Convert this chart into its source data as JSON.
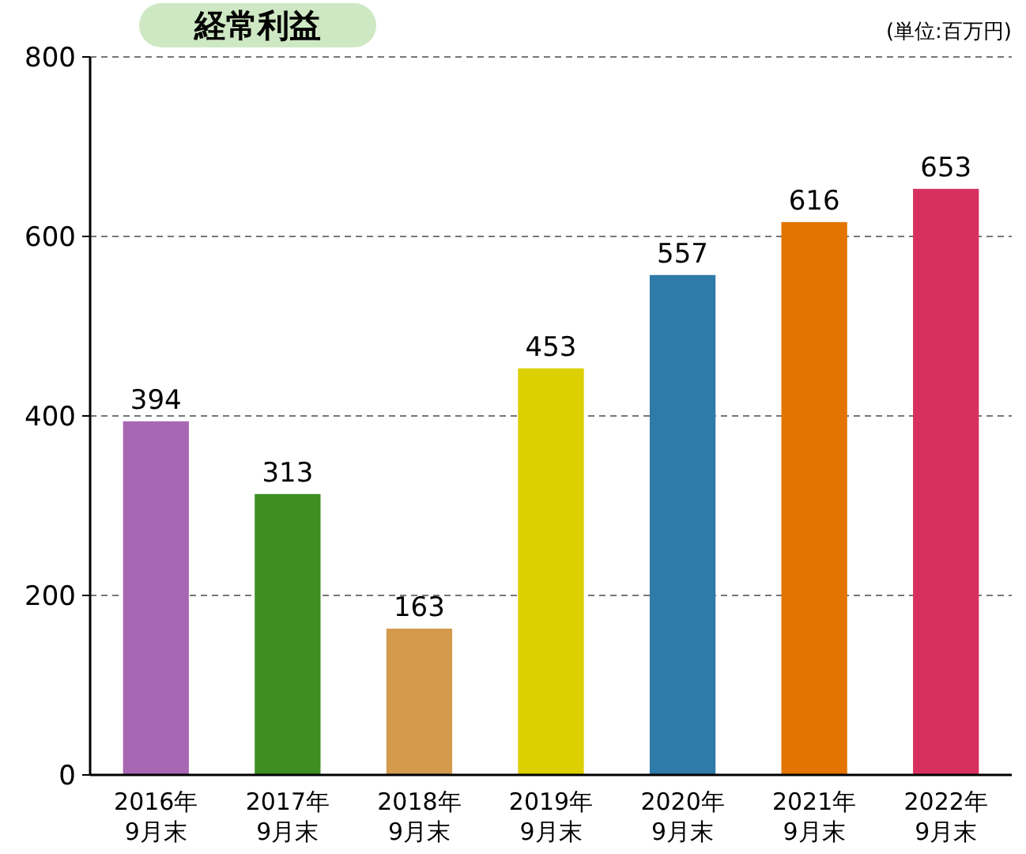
{
  "chart_data": {
    "type": "bar",
    "title": "経常利益",
    "annotations": [
      "(単位:百万円)"
    ],
    "categories": [
      "2016年\n9月末",
      "2017年\n9月末",
      "2018年\n9月末",
      "2019年\n9月末",
      "2020年\n9月末",
      "2021年\n9月末",
      "2022年\n9月末"
    ],
    "values": [
      394,
      313,
      163,
      453,
      557,
      616,
      653
    ],
    "colors": [
      "#a867b3",
      "#3e8e22",
      "#d49a4e",
      "#ddd000",
      "#2e7aa8",
      "#e47400",
      "#d8305e"
    ],
    "ylim": [
      0,
      800
    ],
    "yticks": [
      0,
      200,
      400,
      600,
      800
    ],
    "grid": "y",
    "data_labels": true
  }
}
